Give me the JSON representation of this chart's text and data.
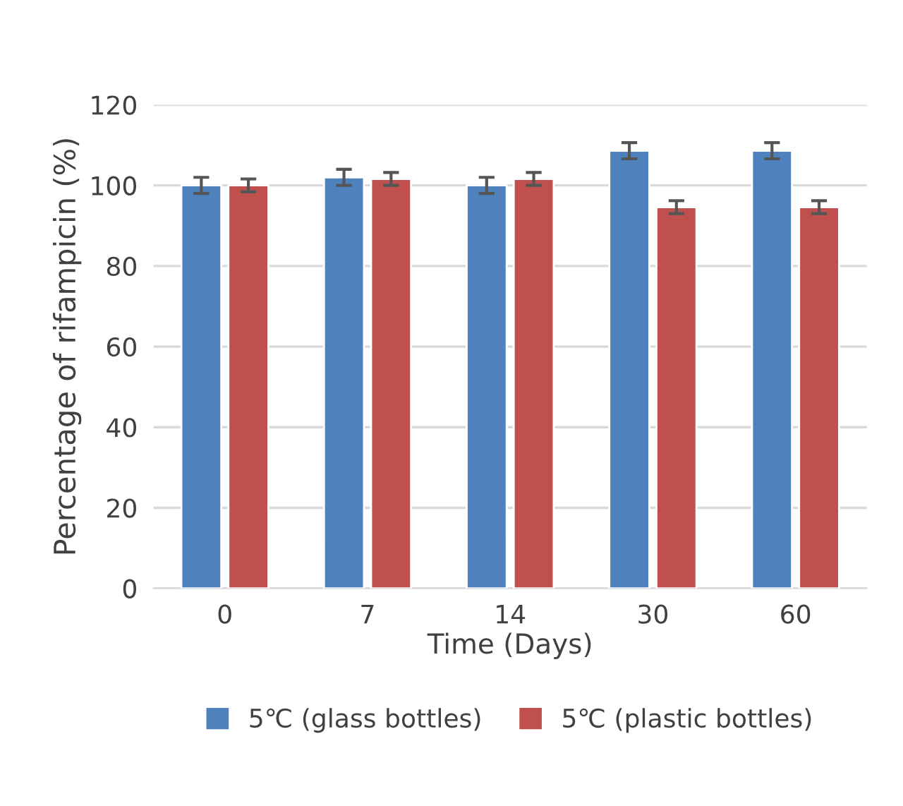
{
  "chart_data": {
    "type": "bar",
    "xlabel": "Time (Days)",
    "ylabel": "Percentage of rifampicin (%)",
    "categories": [
      "0",
      "7",
      "14",
      "30",
      "60"
    ],
    "series": [
      {
        "name": "5℃ (glass bottles)",
        "color": "#4f81bd",
        "values": [
          100,
          102,
          100,
          108.6,
          108.6
        ],
        "errors": [
          2,
          2,
          2,
          2,
          2
        ]
      },
      {
        "name": "5℃ (plastic bottles)",
        "color": "#c0504d",
        "values": [
          100,
          101.6,
          101.6,
          94.6,
          94.6
        ],
        "errors": [
          1.6,
          1.6,
          1.6,
          1.6,
          1.6
        ]
      }
    ],
    "ylim": [
      0,
      120
    ],
    "yticks": [
      0,
      20,
      40,
      60,
      80,
      100,
      120
    ],
    "grid": "y",
    "legend": "bottom"
  }
}
